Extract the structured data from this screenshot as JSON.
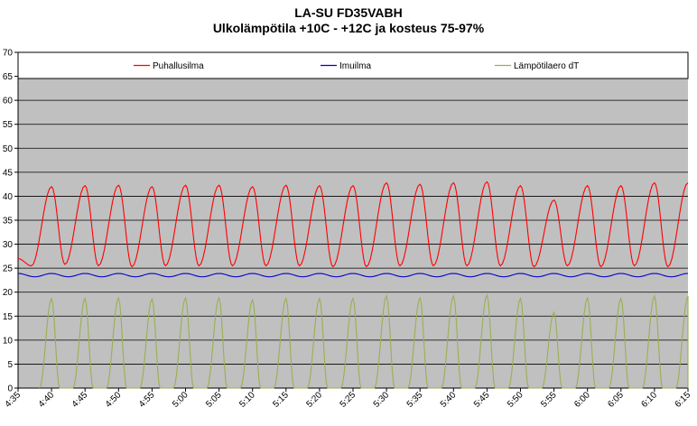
{
  "chart_data": {
    "type": "line",
    "title": "LA-SU FD35VABH",
    "subtitle": "Ulkolämpötila  +10C - +12C ja kosteus 75-97%",
    "xlabel": "",
    "ylabel": "",
    "ylim": [
      0,
      70
    ],
    "yticks": [
      0,
      5,
      10,
      15,
      20,
      25,
      30,
      35,
      40,
      45,
      50,
      55,
      60,
      65,
      70
    ],
    "xticks": [
      "4:35",
      "4:40",
      "4:45",
      "4:50",
      "4:55",
      "5:00",
      "5:05",
      "5:10",
      "5:15",
      "5:20",
      "5:25",
      "5:30",
      "5:35",
      "5:40",
      "5:45",
      "5:50",
      "5:55",
      "6:00",
      "6:05",
      "6:10",
      "6:15"
    ],
    "grid": true,
    "plot_background": "#c0c0c0",
    "legend_position": "top",
    "series": [
      {
        "name": "Puhallusilma",
        "color": "#ff0000",
        "peaks": [
          [
            "4:35",
            27.0
          ],
          [
            "4:40",
            42.0
          ],
          [
            "4:45",
            42.2
          ],
          [
            "4:50",
            42.3
          ],
          [
            "4:55",
            42.0
          ],
          [
            "5:00",
            42.3
          ],
          [
            "5:05",
            42.3
          ],
          [
            "5:10",
            42.0
          ],
          [
            "5:15",
            42.3
          ],
          [
            "5:20",
            42.2
          ],
          [
            "5:25",
            42.2
          ],
          [
            "5:30",
            42.8
          ],
          [
            "5:35",
            42.5
          ],
          [
            "5:40",
            42.8
          ],
          [
            "5:45",
            43.0
          ],
          [
            "5:50",
            42.2
          ],
          [
            "5:55",
            39.2
          ],
          [
            "6:00",
            42.2
          ],
          [
            "6:05",
            42.2
          ],
          [
            "6:10",
            42.8
          ],
          [
            "6:15",
            42.8
          ]
        ],
        "troughs": [
          [
            "4:37",
            25.5
          ],
          [
            "4:42",
            25.8
          ],
          [
            "4:47",
            25.5
          ],
          [
            "4:52",
            25.3
          ],
          [
            "4:57",
            25.5
          ],
          [
            "5:02",
            25.5
          ],
          [
            "5:07",
            25.5
          ],
          [
            "5:12",
            25.5
          ],
          [
            "5:17",
            25.5
          ],
          [
            "5:22",
            25.3
          ],
          [
            "5:27",
            25.3
          ],
          [
            "5:32",
            25.5
          ],
          [
            "5:37",
            25.5
          ],
          [
            "5:42",
            25.5
          ],
          [
            "5:47",
            25.5
          ],
          [
            "5:52",
            25.3
          ],
          [
            "5:57",
            25.5
          ],
          [
            "6:02",
            25.3
          ],
          [
            "6:07",
            25.5
          ],
          [
            "6:12",
            25.3
          ]
        ]
      },
      {
        "name": "Imuilma",
        "color": "#0000cc",
        "approx_value_range": [
          23.2,
          23.9
        ]
      },
      {
        "name": "Lämpötilaero dT",
        "color": "#99b050",
        "peaks": [
          [
            "4:40",
            18.7
          ],
          [
            "4:45",
            18.7
          ],
          [
            "4:50",
            18.8
          ],
          [
            "4:55",
            18.6
          ],
          [
            "5:00",
            18.8
          ],
          [
            "5:05",
            18.8
          ],
          [
            "5:10",
            18.4
          ],
          [
            "5:15",
            18.7
          ],
          [
            "5:20",
            18.7
          ],
          [
            "5:25",
            18.7
          ],
          [
            "5:30",
            19.2
          ],
          [
            "5:35",
            18.8
          ],
          [
            "5:40",
            19.2
          ],
          [
            "5:45",
            19.4
          ],
          [
            "5:50",
            18.7
          ],
          [
            "5:55",
            15.8
          ],
          [
            "6:00",
            18.8
          ],
          [
            "6:05",
            18.7
          ],
          [
            "6:10",
            19.2
          ],
          [
            "6:15",
            19.2
          ]
        ],
        "baseline": 0
      }
    ]
  }
}
